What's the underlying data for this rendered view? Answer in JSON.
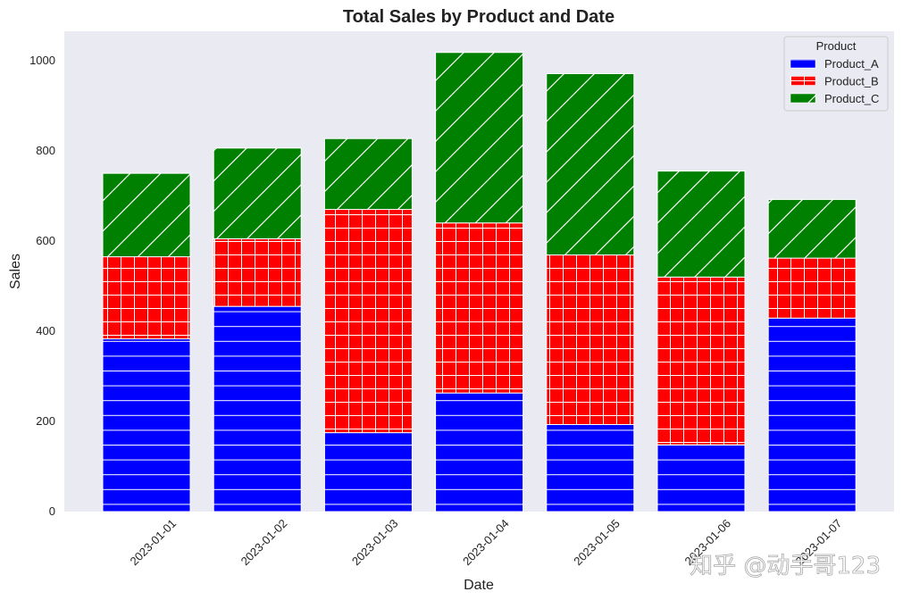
{
  "chart_data": {
    "type": "bar",
    "stacked": true,
    "title": "Total Sales by Product and Date",
    "xlabel": "Date",
    "ylabel": "Sales",
    "categories": [
      "2023-01-01",
      "2023-01-02",
      "2023-01-03",
      "2023-01-04",
      "2023-01-05",
      "2023-01-06",
      "2023-01-07"
    ],
    "series": [
      {
        "name": "Product_A",
        "color": "#0000ff",
        "hatch": "horizontal",
        "values": [
          383,
          455,
          175,
          263,
          193,
          148,
          429
        ]
      },
      {
        "name": "Product_B",
        "color": "#ff0000",
        "hatch": "grid",
        "values": [
          182,
          150,
          495,
          377,
          376,
          372,
          133
        ]
      },
      {
        "name": "Product_C",
        "color": "#008000",
        "hatch": "diagonal",
        "values": [
          185,
          201,
          157,
          378,
          402,
          235,
          130
        ]
      }
    ],
    "ylim": [
      0,
      1065
    ],
    "yticks": [
      0,
      200,
      400,
      600,
      800,
      1000
    ],
    "grid": false,
    "background": "#eaeaf2",
    "legend": {
      "title": "Product",
      "placement": "top-right"
    }
  },
  "watermark": "知乎 @动手哥123"
}
